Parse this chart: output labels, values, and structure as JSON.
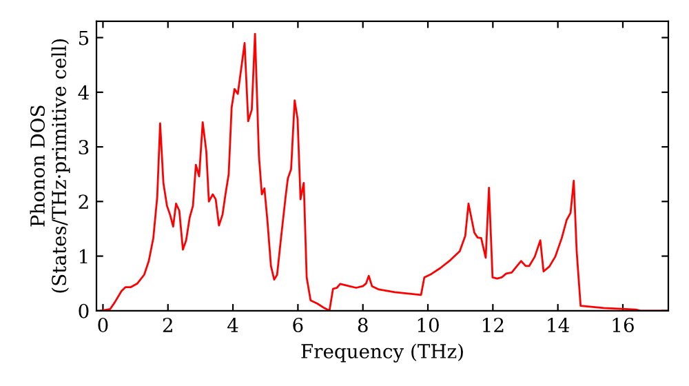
{
  "chart_data": {
    "type": "line",
    "xlabel": "Frequency (THz)",
    "ylabel": "Phonon DOS\n(States/THz·primitive cell)",
    "xlim": [
      -0.2,
      17.4
    ],
    "ylim": [
      0,
      5.3
    ],
    "xticks": [
      0,
      2,
      4,
      6,
      8,
      10,
      12,
      14,
      16
    ],
    "yticks": [
      0,
      1,
      2,
      3,
      4,
      5
    ],
    "series": [
      {
        "color": "#ff0000",
        "x": [
          -0.06,
          0.22,
          0.36,
          0.57,
          0.69,
          0.85,
          1.06,
          1.27,
          1.41,
          1.55,
          1.67,
          1.76,
          1.86,
          1.97,
          2.07,
          2.16,
          2.25,
          2.35,
          2.46,
          2.56,
          2.67,
          2.77,
          2.86,
          2.96,
          3.07,
          3.18,
          3.26,
          3.38,
          3.47,
          3.57,
          3.68,
          3.77,
          3.87,
          3.96,
          4.05,
          4.15,
          4.36,
          4.47,
          4.58,
          4.68,
          4.8,
          4.89,
          4.97,
          5.06,
          5.17,
          5.27,
          5.36,
          5.48,
          5.62,
          5.69,
          5.79,
          5.9,
          5.99,
          6.08,
          6.18,
          6.27,
          6.39,
          6.6,
          6.81,
          6.97,
          7.08,
          7.2,
          7.3,
          7.58,
          7.79,
          8.0,
          8.1,
          8.18,
          8.28,
          8.49,
          8.98,
          9.79,
          9.89,
          10.1,
          10.38,
          10.66,
          10.98,
          11.15,
          11.25,
          11.43,
          11.53,
          11.64,
          11.78,
          11.88,
          11.99,
          12.13,
          12.27,
          12.41,
          12.58,
          12.73,
          12.87,
          13.01,
          13.12,
          13.29,
          13.46,
          13.56,
          13.74,
          13.92,
          14.12,
          14.27,
          14.39,
          14.49,
          14.58,
          14.7,
          15.42,
          16.4,
          16.54,
          17.4
        ],
        "values": [
          0,
          0.03,
          0.15,
          0.36,
          0.43,
          0.43,
          0.5,
          0.66,
          0.91,
          1.33,
          2.08,
          3.43,
          2.34,
          1.92,
          1.75,
          1.54,
          1.96,
          1.83,
          1.12,
          1.29,
          1.71,
          1.92,
          2.67,
          2.46,
          3.45,
          2.92,
          2.0,
          2.13,
          2.04,
          1.56,
          1.76,
          2.13,
          2.5,
          3.72,
          4.06,
          3.97,
          4.9,
          3.47,
          3.68,
          5.07,
          2.84,
          2.13,
          2.24,
          1.66,
          0.82,
          0.57,
          0.66,
          1.33,
          2.08,
          2.42,
          2.59,
          3.85,
          3.51,
          2.04,
          2.34,
          0.61,
          0.19,
          0.13,
          0.05,
          0,
          0.4,
          0.42,
          0.49,
          0.45,
          0.42,
          0.45,
          0.5,
          0.64,
          0.45,
          0.39,
          0.34,
          0.29,
          0.61,
          0.67,
          0.78,
          0.91,
          1.09,
          1.37,
          1.96,
          1.43,
          1.34,
          1.33,
          0.97,
          2.25,
          0.61,
          0.59,
          0.61,
          0.68,
          0.7,
          0.81,
          0.91,
          0.82,
          0.82,
          0.99,
          1.29,
          0.72,
          0.81,
          0.99,
          1.33,
          1.66,
          1.79,
          2.38,
          1.08,
          0.09,
          0.05,
          0.02,
          0,
          0
        ]
      }
    ]
  }
}
